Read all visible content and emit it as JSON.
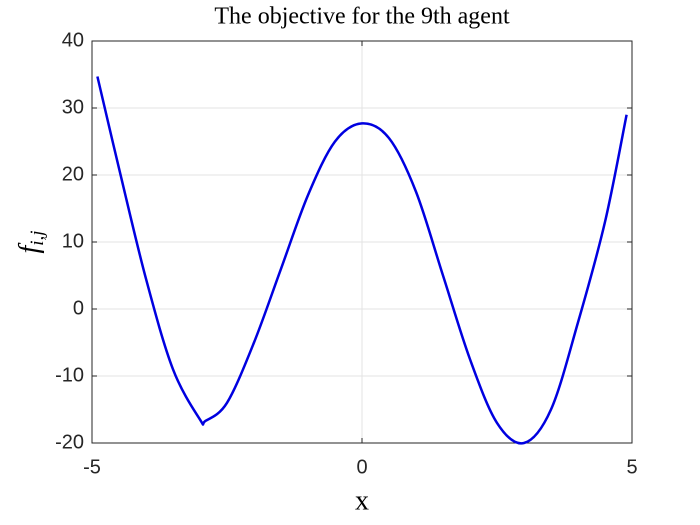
{
  "chart_data": {
    "type": "line",
    "title": "The objective for the 9th agent",
    "xlabel": "x",
    "ylabel": "f",
    "ylabel_subscript": "i,j",
    "x": [
      -4.9,
      -4.5,
      -4,
      -3.5,
      -3,
      -2.9,
      -2.5,
      -2,
      -1.5,
      -1,
      -0.5,
      0,
      0.5,
      1,
      1.5,
      2,
      2.5,
      3,
      3.5,
      4,
      4.5,
      4.9
    ],
    "series": [
      {
        "name": "f",
        "color": "#0000e0",
        "values": [
          34.7,
          21,
          4.5,
          -9,
          -16.5,
          -16.7,
          -14,
          -5,
          6,
          17,
          25,
          27.7,
          25.5,
          17.5,
          5,
          -7.5,
          -17,
          -20,
          -15,
          -2,
          13,
          29
        ]
      }
    ],
    "xlim": [
      -5,
      5
    ],
    "xticks": [
      -5,
      0,
      5
    ],
    "ylim": [
      -20,
      40
    ],
    "yticks": [
      -20,
      -10,
      0,
      10,
      20,
      30,
      40
    ],
    "grid": true
  }
}
